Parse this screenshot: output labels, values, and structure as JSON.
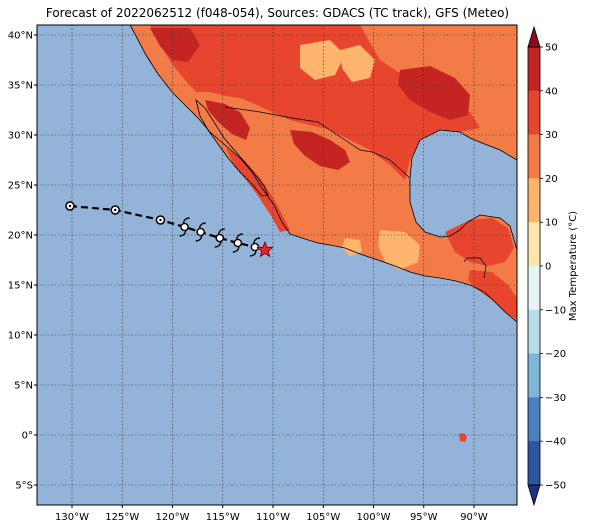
{
  "map": {
    "title": "Forecast of 2022062512 (f048-054), Sources: GDACS (TC track), GFS (Meteo)",
    "lat_ticks": [
      "40°N",
      "35°N",
      "30°N",
      "25°N",
      "20°N",
      "15°N",
      "10°N",
      "5°N",
      "0°",
      "5°S"
    ],
    "lon_ticks": [
      "130°W",
      "125°W",
      "120°W",
      "115°W",
      "110°W",
      "105°W",
      "100°W",
      "95°W",
      "90°W"
    ],
    "ocean_color": "#93b4d8",
    "land_colors": {
      "hot": "#e8452f",
      "warm": "#f27b47",
      "mild": "#fdb46d",
      "veryhot": "#c42523"
    },
    "track": {
      "past_points_lonlat": [
        [
          -130.2,
          22.9
        ],
        [
          -125.7,
          22.5
        ],
        [
          -121.2,
          21.5
        ]
      ],
      "forecast_points_lonlat": [
        [
          -118.8,
          20.8
        ],
        [
          -117.2,
          20.3
        ],
        [
          -115.3,
          19.7
        ],
        [
          -113.5,
          19.2
        ],
        [
          -111.8,
          18.8
        ]
      ],
      "current_position_lonlat": [
        -110.8,
        18.5
      ]
    }
  },
  "colorbar": {
    "label": "Max Temperature (°C)",
    "ticks": [
      "50",
      "40",
      "30",
      "20",
      "10",
      "0",
      "−10",
      "−20",
      "−30",
      "−40",
      "−50"
    ],
    "colors": [
      "#8c0a1f",
      "#c42523",
      "#e8452f",
      "#f27b47",
      "#fdb46d",
      "#fde6ab",
      "#e6f4f3",
      "#b7dcea",
      "#7fb5d6",
      "#4a82bf",
      "#2d56a0",
      "#1e2f86"
    ]
  }
}
